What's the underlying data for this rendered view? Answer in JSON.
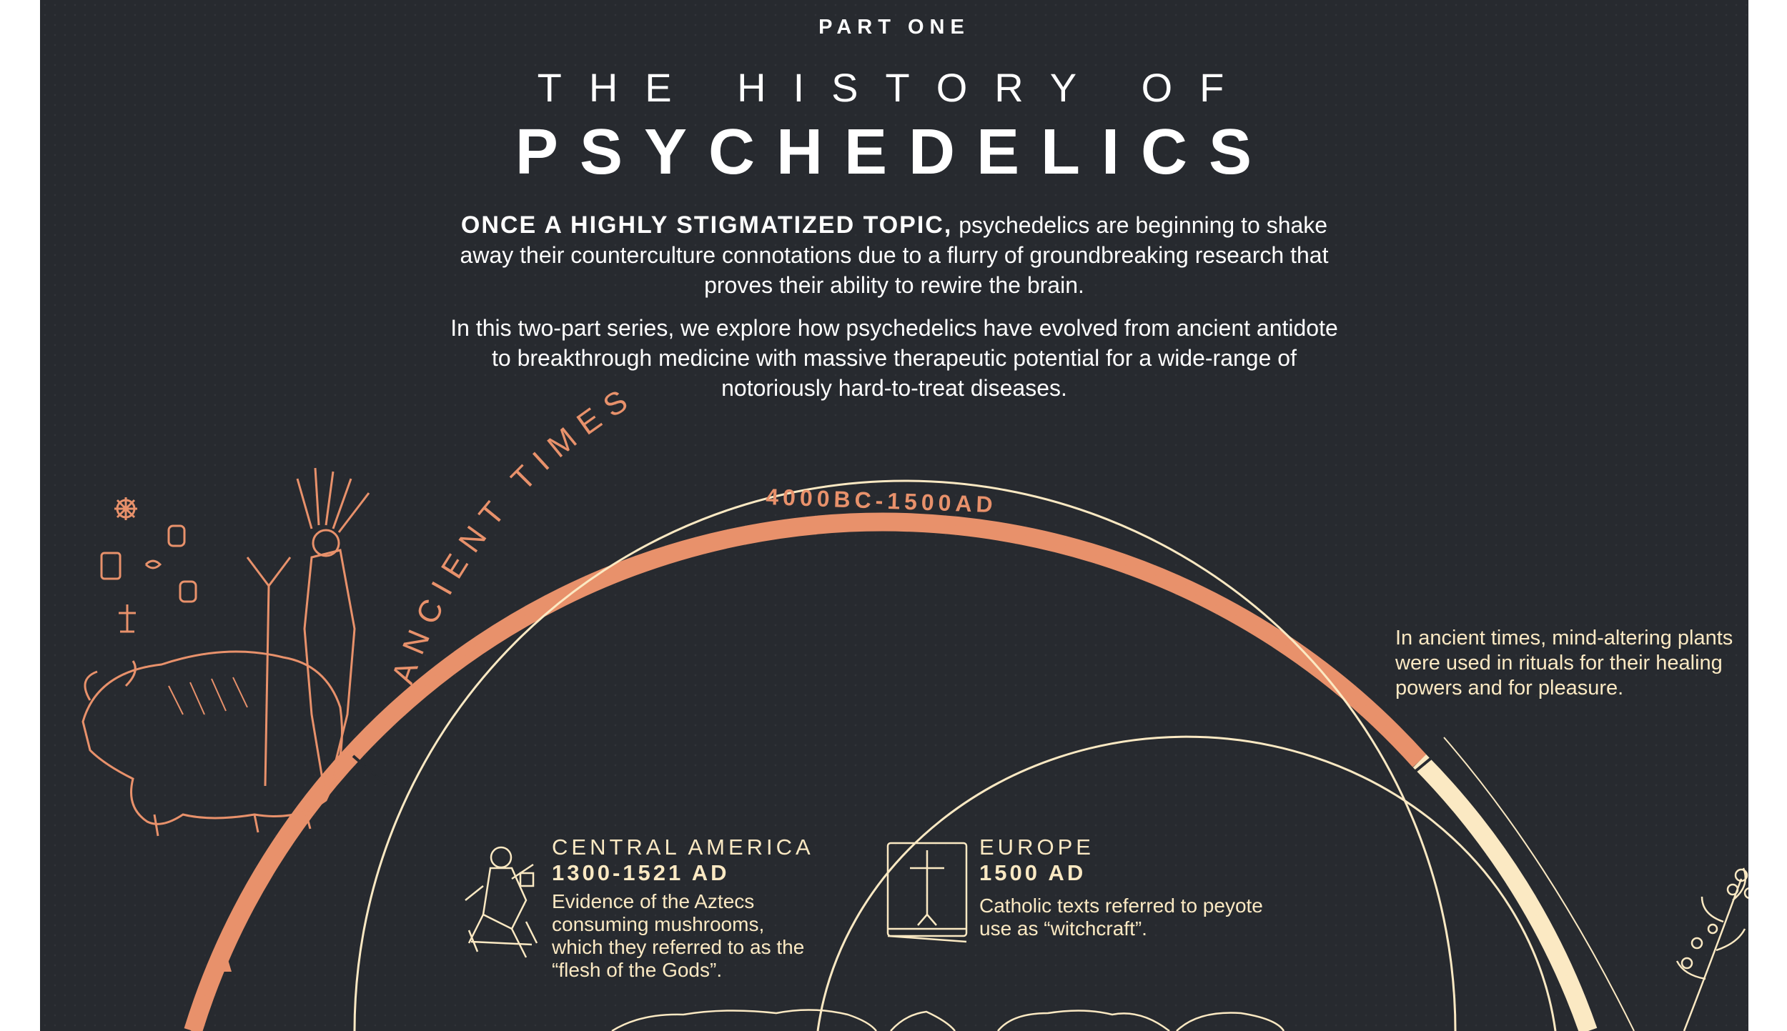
{
  "header": {
    "part_label": "PART ONE",
    "title_line1": "THE HISTORY OF",
    "title_line2": "PSYCHEDELICS"
  },
  "intro": {
    "lead": "ONCE A HIGHLY STIGMATIZED TOPIC,",
    "paragraph1_rest": "psychedelics are beginning to shake away their counterculture connotations due to a flurry of groundbreaking research that proves their ability to rewire the brain.",
    "paragraph2": "In this two-part series, we explore how psychedelics have evolved from ancient antidote to breakthrough medicine with massive therapeutic potential for a wide-range of notoriously hard-to-treat diseases."
  },
  "era": {
    "label": "ANCIENT TIMES",
    "dates": "4000BC-1500AD",
    "note": "In ancient times, mind-altering plants were used in rituals for their healing powers and for pleasure."
  },
  "regions": [
    {
      "title": "CENTRAL AMERICA",
      "date": "1300-1521 AD",
      "description": "Evidence of the Aztecs consuming mushrooms, which they referred to as the “flesh of the Gods”.",
      "icon": "aztec-codex-figure-icon"
    },
    {
      "title": "EUROPE",
      "date": "1500 AD",
      "description": "Catholic texts referred to peyote use as “witchcraft”.",
      "icon": "bible-cross-icon"
    }
  ],
  "illustrations": {
    "left": "shaman-and-bison-illustration",
    "right": "peyote-plant-illustration",
    "bottom": "world-map-outline"
  },
  "colors": {
    "background": "#272a2f",
    "accent_orange": "#e8916b",
    "cream": "#fbe9c3",
    "text_white": "#ffffff"
  }
}
